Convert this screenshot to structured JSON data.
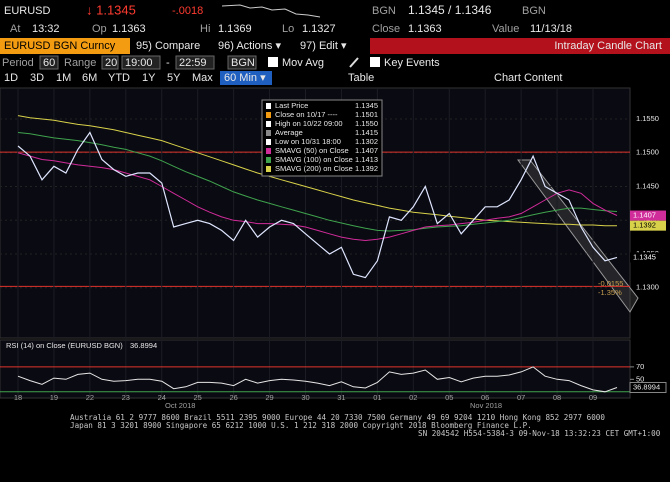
{
  "header": {
    "ticker": "EURUSD",
    "last": "↓ 1.1345",
    "change": "-.0018",
    "bid_src": "BGN",
    "bid_ask": "1.1345 / 1.1346",
    "ask_src": "BGN",
    "at_label": "At",
    "at": "13:32",
    "op_label": "Op",
    "op": "1.1363",
    "hi_label": "Hi",
    "hi": "1.1369",
    "lo_label": "Lo",
    "lo": "1.1327",
    "close_label": "Close",
    "close": "1.1363",
    "value_label": "Value",
    "value": "11/13/18"
  },
  "toolbar": {
    "security": "EURUSD BGN Curncy",
    "compare": "95) Compare",
    "actions": "96) Actions ▾",
    "edit": "97) Edit ▾",
    "chart_name": "Intraday Candle Chart",
    "period_label": "Period",
    "period": "60",
    "range_label": "Range",
    "range": "20",
    "from": "19:00",
    "dash": "-",
    "to": "22:59",
    "source": "BGN",
    "mov_avg": "Mov Avg",
    "key_events": "Key Events",
    "ranges": [
      "1D",
      "3D",
      "1M",
      "6M",
      "YTD",
      "1Y",
      "5Y",
      "Max"
    ],
    "interval": "60 Min ▾",
    "table": "Table",
    "chart_content": "Chart Content"
  },
  "chart_data": {
    "type": "line",
    "legend": [
      {
        "label": "Last Price",
        "value": "1.1345"
      },
      {
        "label": "Close on 10/17 ----",
        "value": "1.1501"
      },
      {
        "label": "High on 10/22 09:00",
        "value": "1.1550"
      },
      {
        "label": "Average",
        "value": "1.1415"
      },
      {
        "label": "Low on 10/31 18:00",
        "value": "1.1302"
      },
      {
        "label": "SMAVG (50) on Close",
        "value": "1.1407"
      },
      {
        "label": "SMAVG (100) on Close",
        "value": "1.1413"
      },
      {
        "label": "SMAVG (200) on Close",
        "value": "1.1392"
      }
    ],
    "ref_lines": [
      {
        "value": 1.1501,
        "color": "#e0342c"
      },
      {
        "value": 1.1302,
        "color": "#e0342c"
      }
    ],
    "annotations": [
      "-0.0155",
      "-1.35%"
    ],
    "categories": [
      "18",
      null,
      null,
      "19",
      null,
      null,
      "22",
      null,
      null,
      "23",
      null,
      null,
      "24",
      null,
      null,
      "25",
      null,
      null,
      "26",
      null,
      null,
      "29",
      null,
      null,
      "30",
      null,
      null,
      "31",
      null,
      null,
      "01",
      null,
      null,
      "02",
      null,
      null,
      "05",
      null,
      null,
      "06",
      null,
      null,
      "07",
      null,
      null,
      "08",
      null,
      null,
      "09",
      null,
      null
    ],
    "month_labels": [
      "Oct 2018",
      "Nov 2018"
    ],
    "series": [
      {
        "name": "Last Price",
        "color": "#dfe6ff",
        "values": [
          1.151,
          1.1495,
          1.146,
          1.148,
          1.147,
          1.1505,
          1.153,
          1.149,
          1.1475,
          1.1465,
          1.147,
          1.147,
          1.1455,
          1.139,
          1.1395,
          1.14,
          1.1395,
          1.1385,
          1.137,
          1.14,
          1.1375,
          1.139,
          1.14,
          1.1395,
          1.138,
          1.1365,
          1.135,
          1.136,
          1.132,
          1.1315,
          1.134,
          1.1405,
          1.14,
          1.142,
          1.145,
          1.1395,
          1.141,
          1.138,
          1.14,
          1.142,
          1.142,
          1.143,
          1.146,
          1.1495,
          1.145,
          1.144,
          1.143,
          1.139,
          1.136,
          1.134,
          1.1345
        ]
      },
      {
        "name": "SMAVG (50)",
        "color": "#d02c9a",
        "values": [
          1.15,
          1.1495,
          1.149,
          1.1488,
          1.1485,
          1.1482,
          1.148,
          1.1478,
          1.1475,
          1.147,
          1.1465,
          1.146,
          1.145,
          1.144,
          1.143,
          1.142,
          1.1412,
          1.1405,
          1.14,
          1.1398,
          1.1395,
          1.1395,
          1.1394,
          1.1393,
          1.139,
          1.1385,
          1.138,
          1.1375,
          1.1372,
          1.137,
          1.1372,
          1.1375,
          1.138,
          1.1385,
          1.139,
          1.1392,
          1.1393,
          1.1395,
          1.1397,
          1.14,
          1.1403,
          1.1405,
          1.141,
          1.142,
          1.143,
          1.144,
          1.1445,
          1.144,
          1.1425,
          1.1415,
          1.1407
        ]
      },
      {
        "name": "SMAVG (100)",
        "color": "#3fa34d",
        "values": [
          1.153,
          1.1528,
          1.1525,
          1.1522,
          1.152,
          1.1518,
          1.1515,
          1.1512,
          1.1508,
          1.1505,
          1.15,
          1.1495,
          1.1488,
          1.148,
          1.1472,
          1.1465,
          1.1458,
          1.145,
          1.1442,
          1.1436,
          1.143,
          1.1425,
          1.142,
          1.1415,
          1.141,
          1.1405,
          1.14,
          1.1396,
          1.1392,
          1.1388,
          1.1385,
          1.1384,
          1.1385,
          1.1386,
          1.1388,
          1.139,
          1.1391,
          1.1392,
          1.1394,
          1.1396,
          1.1398,
          1.14,
          1.1404,
          1.1408,
          1.1412,
          1.1415,
          1.1418,
          1.1418,
          1.1416,
          1.1414,
          1.1413
        ]
      },
      {
        "name": "SMAVG (200)",
        "color": "#d8d24a",
        "values": [
          1.1555,
          1.1552,
          1.155,
          1.1548,
          1.1545,
          1.1542,
          1.154,
          1.1537,
          1.1534,
          1.153,
          1.1526,
          1.1522,
          1.1518,
          1.1512,
          1.1506,
          1.15,
          1.1494,
          1.1488,
          1.1482,
          1.1476,
          1.147,
          1.1465,
          1.146,
          1.1455,
          1.145,
          1.1445,
          1.144,
          1.1435,
          1.143,
          1.1426,
          1.1422,
          1.1418,
          1.1415,
          1.1412,
          1.141,
          1.1408,
          1.1406,
          1.1404,
          1.1402,
          1.14,
          1.1399,
          1.1398,
          1.1397,
          1.1396,
          1.1395,
          1.1394,
          1.1394,
          1.1393,
          1.1393,
          1.1392,
          1.1392
        ]
      }
    ],
    "ylim": [
      1.123,
      1.159
    ],
    "yticks": [
      {
        "value": 1.155,
        "label": "1.1550"
      },
      {
        "value": 1.15,
        "label": "1.1500"
      },
      {
        "value": 1.145,
        "label": "1.1450"
      },
      {
        "value": 1.14,
        "label": "1.1400"
      },
      {
        "value": 1.135,
        "label": "1.1350"
      },
      {
        "value": 1.13,
        "label": "1.1300"
      }
    ],
    "rsi": {
      "title": "RSI (14) on Close (EURUSD BGN)",
      "color": "#e6e6e6",
      "values": [
        55,
        48,
        42,
        52,
        50,
        58,
        60,
        50,
        47,
        48,
        50,
        50,
        47,
        35,
        38,
        45,
        45,
        44,
        40,
        50,
        44,
        48,
        50,
        49,
        47,
        44,
        40,
        46,
        38,
        36,
        45,
        62,
        58,
        60,
        65,
        50,
        53,
        46,
        52,
        55,
        55,
        57,
        62,
        70,
        55,
        50,
        48,
        40,
        33,
        30,
        36.8994
      ],
      "ylim": [
        20,
        110
      ],
      "yticks": [
        70,
        50
      ],
      "ref_lines": [
        {
          "value": 70,
          "color": "#e0342c"
        },
        {
          "value": 30,
          "color": "#3fa34d"
        }
      ]
    }
  },
  "footer": {
    "line1": "Australia 61 2 9777 8600 Brazil 5511 2395 9000 Europe 44 20 7330 7500 Germany 49 69 9204 1210 Hong Kong 852 2977 6000",
    "line2": "Japan 81 3 3201 8900         Singapore 65 6212 1000         U.S. 1 212 318 2000         Copyright 2018 Bloomberg Finance L.P.",
    "line3": "SN 204542 H554-5384-3 09-Nov-18 13:32:23 CET  GMT+1:00"
  }
}
